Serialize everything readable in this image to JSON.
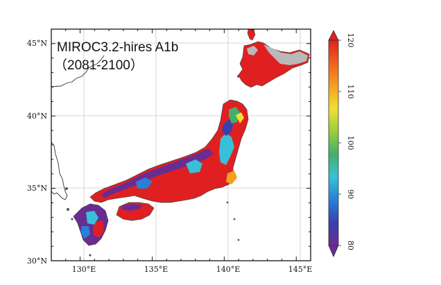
{
  "map": {
    "title_line1": "MIROC3.2-hires A1b",
    "title_line2": "（2081-2100）",
    "lat_labels": [
      "45°N",
      "40°N",
      "35°N",
      "30°N"
    ],
    "lon_labels": [
      "130°E",
      "135°E",
      "140°E",
      "145°E"
    ],
    "lat_range": [
      30,
      46
    ],
    "lon_range": [
      128,
      146
    ]
  },
  "colorbar": {
    "min": 80,
    "max": 120,
    "tick_labels": [
      "80",
      "90",
      "100",
      "110",
      "120"
    ],
    "colors": [
      "#6a2c91",
      "#3a3fb0",
      "#2a7fd6",
      "#38c0d8",
      "#43b06a",
      "#9bcd3c",
      "#f0e030",
      "#f5a020",
      "#f06020",
      "#e02020"
    ]
  },
  "colors": {
    "land_gray": "#b9b9b9",
    "sea": "#ffffff",
    "grid": "#bdbdbd",
    "frame": "#000000"
  }
}
